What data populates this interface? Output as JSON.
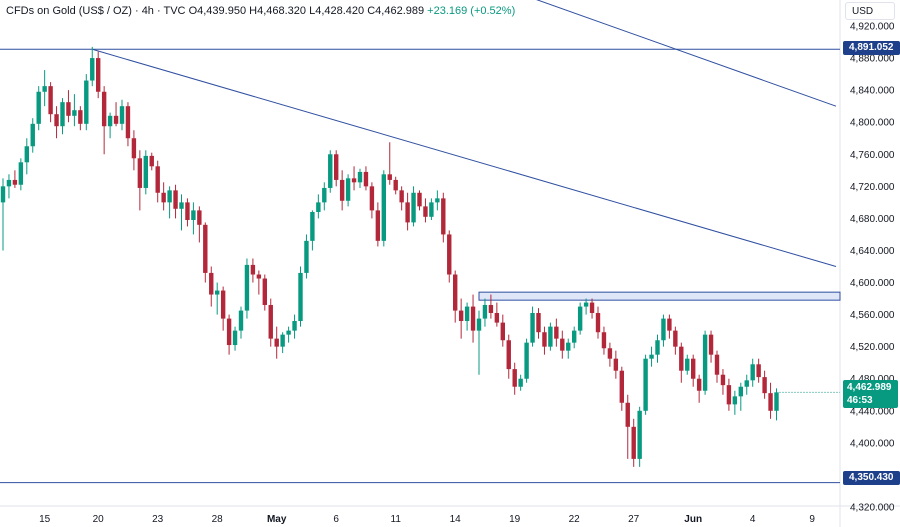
{
  "legend": {
    "symbol": "CFDs on Gold (US$ / OZ) · 4h · TVC",
    "open": "O4,439.950",
    "high": "H4,468.320",
    "low": "L4,428.420",
    "close": "C4,462.989",
    "change": "+23.169 (+0.52%)"
  },
  "currency_button": "USD",
  "level_labels": {
    "upper": "4,891.052",
    "lower": "4,350.430"
  },
  "last_price": {
    "price": "4,462.989",
    "countdown": "46:53"
  },
  "colors": {
    "up": "#089981",
    "down": "#b2283a",
    "line": "#2f4fa0",
    "zone_fill": "#dfe6f7",
    "tag": "#089981"
  },
  "chart_data": {
    "type": "candlestick",
    "interval": "4h",
    "ylim": [
      4305,
      4935
    ],
    "y_ticks": [
      4320,
      4360,
      4400,
      4440,
      4480,
      4520,
      4560,
      4600,
      4640,
      4680,
      4720,
      4760,
      4800,
      4840,
      4880,
      4920
    ],
    "y_tick_labels": [
      "4,320.000",
      "4,360.000",
      "4,400.000",
      "4,440.000",
      "4,480.000",
      "4,520.000",
      "4,560.000",
      "4,600.000",
      "4,640.000",
      "4,680.000",
      "4,720.000",
      "4,760.000",
      "4,800.000",
      "4,840.000",
      "4,880.000",
      "4,920.000"
    ],
    "x_ticks": [
      {
        "bar": 7,
        "label": "15",
        "bold": false
      },
      {
        "bar": 16,
        "label": "20",
        "bold": false
      },
      {
        "bar": 26,
        "label": "23",
        "bold": false
      },
      {
        "bar": 36,
        "label": "28",
        "bold": false
      },
      {
        "bar": 46,
        "label": "May",
        "bold": true
      },
      {
        "bar": 56,
        "label": "6",
        "bold": false
      },
      {
        "bar": 66,
        "label": "11",
        "bold": false
      },
      {
        "bar": 76,
        "label": "14",
        "bold": false
      },
      {
        "bar": 86,
        "label": "19",
        "bold": false
      },
      {
        "bar": 96,
        "label": "22",
        "bold": false
      },
      {
        "bar": 106,
        "label": "27",
        "bold": false
      },
      {
        "bar": 116,
        "label": "Jun",
        "bold": true
      },
      {
        "bar": 126,
        "label": "4",
        "bold": false
      },
      {
        "bar": 136,
        "label": "9",
        "bold": false
      }
    ],
    "horizontal_levels": [
      4891.052,
      4350.43
    ],
    "trendlines": [
      {
        "from": {
          "bar": 15,
          "price": 4891
        },
        "to": {
          "bar": 140,
          "price": 4620
        }
      },
      {
        "from": {
          "bar": 87,
          "price": 4960
        },
        "to": {
          "bar": 140,
          "price": 4820
        }
      }
    ],
    "resistance_zone": {
      "from_bar": 80,
      "to_bar": 140,
      "low": 4578,
      "high": 4588
    },
    "candles": [
      [
        4700,
        4730,
        4640,
        4720
      ],
      [
        4720,
        4735,
        4705,
        4728
      ],
      [
        4728,
        4740,
        4718,
        4722
      ],
      [
        4722,
        4755,
        4715,
        4750
      ],
      [
        4750,
        4780,
        4735,
        4770
      ],
      [
        4770,
        4805,
        4762,
        4798
      ],
      [
        4798,
        4845,
        4790,
        4838
      ],
      [
        4838,
        4865,
        4820,
        4845
      ],
      [
        4845,
        4850,
        4800,
        4810
      ],
      [
        4810,
        4820,
        4780,
        4795
      ],
      [
        4795,
        4830,
        4785,
        4825
      ],
      [
        4825,
        4840,
        4800,
        4808
      ],
      [
        4808,
        4835,
        4795,
        4815
      ],
      [
        4815,
        4820,
        4790,
        4798
      ],
      [
        4798,
        4860,
        4790,
        4852
      ],
      [
        4852,
        4894,
        4845,
        4880
      ],
      [
        4880,
        4888,
        4830,
        4838
      ],
      [
        4838,
        4845,
        4760,
        4795
      ],
      [
        4795,
        4812,
        4780,
        4808
      ],
      [
        4808,
        4825,
        4795,
        4798
      ],
      [
        4798,
        4828,
        4790,
        4820
      ],
      [
        4820,
        4825,
        4770,
        4780
      ],
      [
        4780,
        4790,
        4740,
        4755
      ],
      [
        4755,
        4765,
        4690,
        4718
      ],
      [
        4718,
        4765,
        4710,
        4758
      ],
      [
        4758,
        4762,
        4740,
        4745
      ],
      [
        4745,
        4752,
        4700,
        4712
      ],
      [
        4712,
        4725,
        4690,
        4700
      ],
      [
        4700,
        4720,
        4680,
        4715
      ],
      [
        4715,
        4722,
        4680,
        4692
      ],
      [
        4692,
        4710,
        4665,
        4700
      ],
      [
        4700,
        4705,
        4670,
        4678
      ],
      [
        4678,
        4700,
        4660,
        4690
      ],
      [
        4690,
        4695,
        4650,
        4672
      ],
      [
        4672,
        4675,
        4600,
        4612
      ],
      [
        4612,
        4620,
        4570,
        4585
      ],
      [
        4585,
        4600,
        4560,
        4590
      ],
      [
        4590,
        4595,
        4540,
        4555
      ],
      [
        4555,
        4560,
        4510,
        4522
      ],
      [
        4522,
        4545,
        4515,
        4540
      ],
      [
        4540,
        4570,
        4530,
        4565
      ],
      [
        4565,
        4630,
        4555,
        4622
      ],
      [
        4622,
        4630,
        4600,
        4610
      ],
      [
        4610,
        4615,
        4585,
        4605
      ],
      [
        4605,
        4610,
        4565,
        4572
      ],
      [
        4572,
        4580,
        4520,
        4530
      ],
      [
        4530,
        4545,
        4505,
        4520
      ],
      [
        4520,
        4538,
        4512,
        4535
      ],
      [
        4535,
        4545,
        4525,
        4540
      ],
      [
        4540,
        4560,
        4530,
        4552
      ],
      [
        4552,
        4620,
        4545,
        4612
      ],
      [
        4612,
        4660,
        4605,
        4652
      ],
      [
        4652,
        4690,
        4640,
        4688
      ],
      [
        4688,
        4710,
        4680,
        4700
      ],
      [
        4700,
        4725,
        4690,
        4718
      ],
      [
        4718,
        4765,
        4712,
        4760
      ],
      [
        4760,
        4765,
        4720,
        4728
      ],
      [
        4728,
        4740,
        4690,
        4702
      ],
      [
        4702,
        4735,
        4695,
        4730
      ],
      [
        4730,
        4745,
        4715,
        4725
      ],
      [
        4725,
        4742,
        4718,
        4738
      ],
      [
        4738,
        4745,
        4715,
        4720
      ],
      [
        4720,
        4725,
        4680,
        4690
      ],
      [
        4690,
        4700,
        4645,
        4652
      ],
      [
        4652,
        4740,
        4645,
        4735
      ],
      [
        4735,
        4775,
        4722,
        4728
      ],
      [
        4728,
        4732,
        4710,
        4715
      ],
      [
        4715,
        4720,
        4690,
        4700
      ],
      [
        4700,
        4712,
        4665,
        4675
      ],
      [
        4675,
        4720,
        4670,
        4712
      ],
      [
        4712,
        4715,
        4690,
        4695
      ],
      [
        4695,
        4705,
        4675,
        4682
      ],
      [
        4682,
        4705,
        4678,
        4700
      ],
      [
        4700,
        4715,
        4690,
        4705
      ],
      [
        4705,
        4712,
        4650,
        4660
      ],
      [
        4660,
        4665,
        4600,
        4610
      ],
      [
        4610,
        4615,
        4550,
        4565
      ],
      [
        4565,
        4580,
        4530,
        4552
      ],
      [
        4552,
        4575,
        4540,
        4570
      ],
      [
        4570,
        4585,
        4525,
        4540
      ],
      [
        4540,
        4565,
        4485,
        4555
      ],
      [
        4555,
        4580,
        4545,
        4572
      ],
      [
        4572,
        4585,
        4555,
        4562
      ],
      [
        4562,
        4575,
        4545,
        4550
      ],
      [
        4550,
        4560,
        4520,
        4528
      ],
      [
        4528,
        4535,
        4480,
        4492
      ],
      [
        4492,
        4500,
        4460,
        4470
      ],
      [
        4470,
        4485,
        4465,
        4480
      ],
      [
        4480,
        4530,
        4475,
        4525
      ],
      [
        4525,
        4570,
        4520,
        4562
      ],
      [
        4562,
        4568,
        4530,
        4538
      ],
      [
        4538,
        4545,
        4510,
        4520
      ],
      [
        4520,
        4550,
        4515,
        4545
      ],
      [
        4545,
        4555,
        4520,
        4530
      ],
      [
        4530,
        4540,
        4505,
        4515
      ],
      [
        4515,
        4530,
        4505,
        4525
      ],
      [
        4525,
        4545,
        4518,
        4540
      ],
      [
        4540,
        4575,
        4535,
        4570
      ],
      [
        4570,
        4580,
        4560,
        4575
      ],
      [
        4575,
        4580,
        4555,
        4562
      ],
      [
        4562,
        4570,
        4530,
        4538
      ],
      [
        4538,
        4545,
        4510,
        4518
      ],
      [
        4518,
        4525,
        4495,
        4505
      ],
      [
        4505,
        4515,
        4480,
        4490
      ],
      [
        4490,
        4495,
        4440,
        4450
      ],
      [
        4450,
        4460,
        4380,
        4420
      ],
      [
        4420,
        4430,
        4370,
        4380
      ],
      [
        4380,
        4445,
        4370,
        4440
      ],
      [
        4440,
        4510,
        4435,
        4505
      ],
      [
        4505,
        4520,
        4495,
        4510
      ],
      [
        4510,
        4535,
        4500,
        4528
      ],
      [
        4528,
        4560,
        4520,
        4555
      ],
      [
        4555,
        4560,
        4530,
        4540
      ],
      [
        4540,
        4545,
        4510,
        4520
      ],
      [
        4520,
        4525,
        4475,
        4490
      ],
      [
        4490,
        4510,
        4485,
        4505
      ],
      [
        4505,
        4510,
        4470,
        4480
      ],
      [
        4480,
        4485,
        4450,
        4465
      ],
      [
        4465,
        4540,
        4460,
        4535
      ],
      [
        4535,
        4540,
        4500,
        4510
      ],
      [
        4510,
        4515,
        4475,
        4485
      ],
      [
        4485,
        4492,
        4460,
        4472
      ],
      [
        4472,
        4480,
        4440,
        4448
      ],
      [
        4448,
        4465,
        4435,
        4458
      ],
      [
        4458,
        4475,
        4440,
        4470
      ],
      [
        4470,
        4485,
        4460,
        4478
      ],
      [
        4478,
        4505,
        4470,
        4498
      ],
      [
        4498,
        4505,
        4475,
        4482
      ],
      [
        4482,
        4490,
        4455,
        4462
      ],
      [
        4462,
        4475,
        4430,
        4440
      ],
      [
        4440,
        4468,
        4428,
        4463
      ]
    ]
  }
}
